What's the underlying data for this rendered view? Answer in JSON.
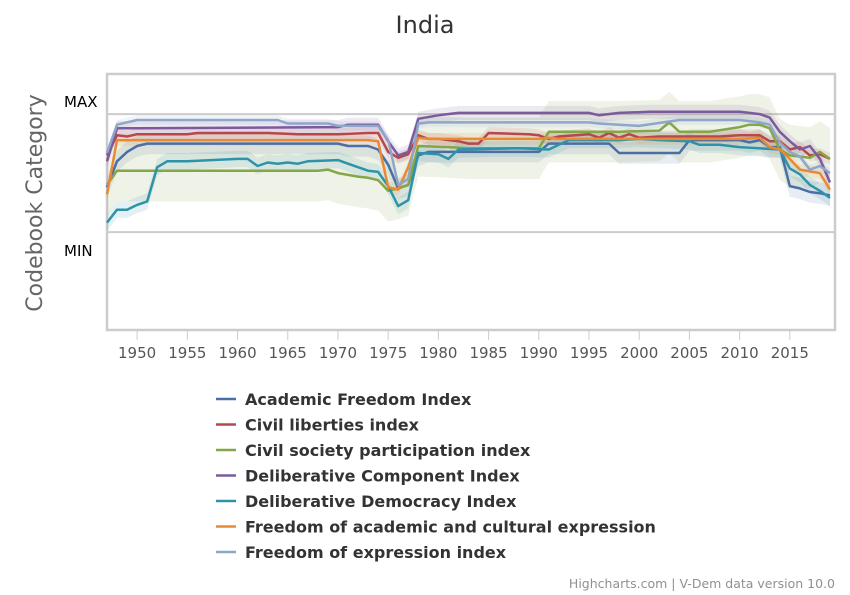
{
  "chart_data": {
    "type": "line",
    "title": "India",
    "xlabel": "",
    "ylabel": "Codebook Category",
    "y_tick_labels": [
      "MAX",
      "MIN"
    ],
    "y_ticks": [
      1,
      0
    ],
    "ylim": [
      -0.83,
      1.34
    ],
    "xlim": [
      1947,
      2019.5
    ],
    "x_ticks": [
      1950,
      1955,
      1960,
      1965,
      1970,
      1975,
      1980,
      1985,
      1990,
      1995,
      2000,
      2005,
      2010,
      2015
    ],
    "grid": true,
    "legend_position": "bottom",
    "credits": "Highcharts.com | V-Dem data version 10.0",
    "series": [
      {
        "name": "Academic Freedom Index",
        "color": "#4a6fa5",
        "band": 0.09,
        "points": [
          [
            1947,
            0.38
          ],
          [
            1948,
            0.6
          ],
          [
            1949,
            0.68
          ],
          [
            1950,
            0.73
          ],
          [
            1951,
            0.75
          ],
          [
            1970,
            0.75
          ],
          [
            1971,
            0.73
          ],
          [
            1973,
            0.73
          ],
          [
            1974,
            0.7
          ],
          [
            1975,
            0.57
          ],
          [
            1976,
            0.37
          ],
          [
            1977,
            0.4
          ],
          [
            1978,
            0.65
          ],
          [
            1979,
            0.68
          ],
          [
            1988,
            0.68
          ],
          [
            1990,
            0.68
          ],
          [
            1991,
            0.75
          ],
          [
            1997,
            0.75
          ],
          [
            1998,
            0.67
          ],
          [
            2004,
            0.67
          ],
          [
            2005,
            0.78
          ],
          [
            2010,
            0.78
          ],
          [
            2011,
            0.76
          ],
          [
            2012,
            0.78
          ],
          [
            2013,
            0.72
          ],
          [
            2014,
            0.72
          ],
          [
            2015,
            0.39
          ],
          [
            2016,
            0.37
          ],
          [
            2017,
            0.34
          ],
          [
            2018,
            0.33
          ],
          [
            2019,
            0.31
          ]
        ]
      },
      {
        "name": "Civil liberties index",
        "color": "#b5484a",
        "band": 0.05,
        "points": [
          [
            1947,
            0.65
          ],
          [
            1948,
            0.82
          ],
          [
            1949,
            0.81
          ],
          [
            1950,
            0.83
          ],
          [
            1955,
            0.83
          ],
          [
            1956,
            0.84
          ],
          [
            1963,
            0.84
          ],
          [
            1966,
            0.83
          ],
          [
            1970,
            0.83
          ],
          [
            1973,
            0.84
          ],
          [
            1974,
            0.84
          ],
          [
            1975,
            0.68
          ],
          [
            1976,
            0.63
          ],
          [
            1977,
            0.66
          ],
          [
            1978,
            0.82
          ],
          [
            1979,
            0.79
          ],
          [
            1980,
            0.79
          ],
          [
            1982,
            0.77
          ],
          [
            1983,
            0.75
          ],
          [
            1984,
            0.75
          ],
          [
            1985,
            0.84
          ],
          [
            1989,
            0.83
          ],
          [
            1990,
            0.82
          ],
          [
            1991,
            0.79
          ],
          [
            1992,
            0.81
          ],
          [
            1995,
            0.83
          ],
          [
            1996,
            0.8
          ],
          [
            1997,
            0.84
          ],
          [
            1998,
            0.8
          ],
          [
            1999,
            0.83
          ],
          [
            2000,
            0.8
          ],
          [
            2002,
            0.81
          ],
          [
            2008,
            0.81
          ],
          [
            2010,
            0.82
          ],
          [
            2011,
            0.82
          ],
          [
            2012,
            0.82
          ],
          [
            2013,
            0.77
          ],
          [
            2014,
            0.77
          ],
          [
            2015,
            0.7
          ],
          [
            2016,
            0.72
          ],
          [
            2017,
            0.65
          ],
          [
            2018,
            0.66
          ],
          [
            2019,
            0.62
          ]
        ]
      },
      {
        "name": "Civil society participation index",
        "color": "#83a646",
        "band": 0.26,
        "points": [
          [
            1947,
            0.4
          ],
          [
            1948,
            0.52
          ],
          [
            1950,
            0.52
          ],
          [
            1968,
            0.52
          ],
          [
            1969,
            0.53
          ],
          [
            1970,
            0.5
          ],
          [
            1972,
            0.47
          ],
          [
            1973,
            0.46
          ],
          [
            1974,
            0.44
          ],
          [
            1975,
            0.35
          ],
          [
            1976,
            0.37
          ],
          [
            1977,
            0.4
          ],
          [
            1978,
            0.73
          ],
          [
            1981,
            0.72
          ],
          [
            1983,
            0.71
          ],
          [
            1984,
            0.71
          ],
          [
            1990,
            0.71
          ],
          [
            1991,
            0.85
          ],
          [
            1998,
            0.85
          ],
          [
            2002,
            0.86
          ],
          [
            2003,
            0.93
          ],
          [
            2004,
            0.85
          ],
          [
            2007,
            0.85
          ],
          [
            2010,
            0.89
          ],
          [
            2011,
            0.91
          ],
          [
            2012,
            0.91
          ],
          [
            2013,
            0.88
          ],
          [
            2014,
            0.7
          ],
          [
            2015,
            0.65
          ],
          [
            2017,
            0.63
          ],
          [
            2018,
            0.68
          ],
          [
            2019,
            0.62
          ]
        ]
      },
      {
        "name": "Deliberative Component Index",
        "color": "#7b5a9e",
        "band": 0.06,
        "points": [
          [
            1947,
            0.6
          ],
          [
            1948,
            0.88
          ],
          [
            1950,
            0.88
          ],
          [
            1970,
            0.89
          ],
          [
            1971,
            0.91
          ],
          [
            1974,
            0.91
          ],
          [
            1975,
            0.77
          ],
          [
            1976,
            0.65
          ],
          [
            1977,
            0.68
          ],
          [
            1978,
            0.96
          ],
          [
            1980,
            0.99
          ],
          [
            1982,
            1.01
          ],
          [
            1995,
            1.01
          ],
          [
            1996,
            0.99
          ],
          [
            1998,
            1.01
          ],
          [
            2001,
            1.02
          ],
          [
            2010,
            1.02
          ],
          [
            2011,
            1.01
          ],
          [
            2012,
            1.0
          ],
          [
            2013,
            0.97
          ],
          [
            2014,
            0.85
          ],
          [
            2015,
            0.77
          ],
          [
            2016,
            0.7
          ],
          [
            2017,
            0.73
          ],
          [
            2018,
            0.62
          ],
          [
            2019,
            0.42
          ]
        ]
      },
      {
        "name": "Deliberative Democracy Index",
        "color": "#2e93a8",
        "band": 0.07,
        "points": [
          [
            1947,
            0.08
          ],
          [
            1948,
            0.19
          ],
          [
            1949,
            0.19
          ],
          [
            1950,
            0.23
          ],
          [
            1951,
            0.26
          ],
          [
            1952,
            0.55
          ],
          [
            1953,
            0.6
          ],
          [
            1955,
            0.6
          ],
          [
            1960,
            0.62
          ],
          [
            1961,
            0.62
          ],
          [
            1962,
            0.56
          ],
          [
            1963,
            0.59
          ],
          [
            1964,
            0.58
          ],
          [
            1965,
            0.59
          ],
          [
            1966,
            0.58
          ],
          [
            1967,
            0.6
          ],
          [
            1970,
            0.61
          ],
          [
            1971,
            0.58
          ],
          [
            1972,
            0.55
          ],
          [
            1973,
            0.52
          ],
          [
            1974,
            0.51
          ],
          [
            1975,
            0.39
          ],
          [
            1976,
            0.22
          ],
          [
            1977,
            0.27
          ],
          [
            1978,
            0.67
          ],
          [
            1980,
            0.66
          ],
          [
            1981,
            0.62
          ],
          [
            1982,
            0.7
          ],
          [
            1988,
            0.71
          ],
          [
            1991,
            0.7
          ],
          [
            1992,
            0.74
          ],
          [
            1993,
            0.78
          ],
          [
            1995,
            0.78
          ],
          [
            1998,
            0.78
          ],
          [
            2000,
            0.79
          ],
          [
            2002,
            0.78
          ],
          [
            2005,
            0.77
          ],
          [
            2006,
            0.74
          ],
          [
            2008,
            0.74
          ],
          [
            2010,
            0.72
          ],
          [
            2014,
            0.7
          ],
          [
            2015,
            0.54
          ],
          [
            2016,
            0.49
          ],
          [
            2017,
            0.4
          ],
          [
            2018,
            0.35
          ],
          [
            2019,
            0.29
          ]
        ]
      },
      {
        "name": "Freedom of academic and cultural expression",
        "color": "#e88a35",
        "band": 0.05,
        "points": [
          [
            1947,
            0.32
          ],
          [
            1948,
            0.78
          ],
          [
            1973,
            0.78
          ],
          [
            1974,
            0.77
          ],
          [
            1975,
            0.38
          ],
          [
            1976,
            0.36
          ],
          [
            1977,
            0.55
          ],
          [
            1978,
            0.8
          ],
          [
            1979,
            0.79
          ],
          [
            1990,
            0.79
          ],
          [
            1991,
            0.8
          ],
          [
            1992,
            0.79
          ],
          [
            2010,
            0.79
          ],
          [
            2012,
            0.8
          ],
          [
            2013,
            0.72
          ],
          [
            2014,
            0.7
          ],
          [
            2015,
            0.62
          ],
          [
            2016,
            0.53
          ],
          [
            2018,
            0.5
          ],
          [
            2019,
            0.36
          ]
        ]
      },
      {
        "name": "Freedom of expression index",
        "color": "#8ea6c8",
        "band": 0.04,
        "points": [
          [
            1947,
            0.67
          ],
          [
            1948,
            0.91
          ],
          [
            1950,
            0.95
          ],
          [
            1964,
            0.95
          ],
          [
            1965,
            0.92
          ],
          [
            1969,
            0.92
          ],
          [
            1970,
            0.9
          ],
          [
            1974,
            0.9
          ],
          [
            1975,
            0.78
          ],
          [
            1976,
            0.4
          ],
          [
            1977,
            0.45
          ],
          [
            1978,
            0.92
          ],
          [
            1979,
            0.93
          ],
          [
            1995,
            0.93
          ],
          [
            1996,
            0.92
          ],
          [
            2000,
            0.9
          ],
          [
            2004,
            0.95
          ],
          [
            2006,
            0.95
          ],
          [
            2010,
            0.95
          ],
          [
            2012,
            0.93
          ],
          [
            2013,
            0.91
          ],
          [
            2014,
            0.76
          ],
          [
            2015,
            0.68
          ],
          [
            2016,
            0.64
          ],
          [
            2017,
            0.53
          ],
          [
            2018,
            0.56
          ],
          [
            2019,
            0.5
          ]
        ]
      }
    ]
  }
}
